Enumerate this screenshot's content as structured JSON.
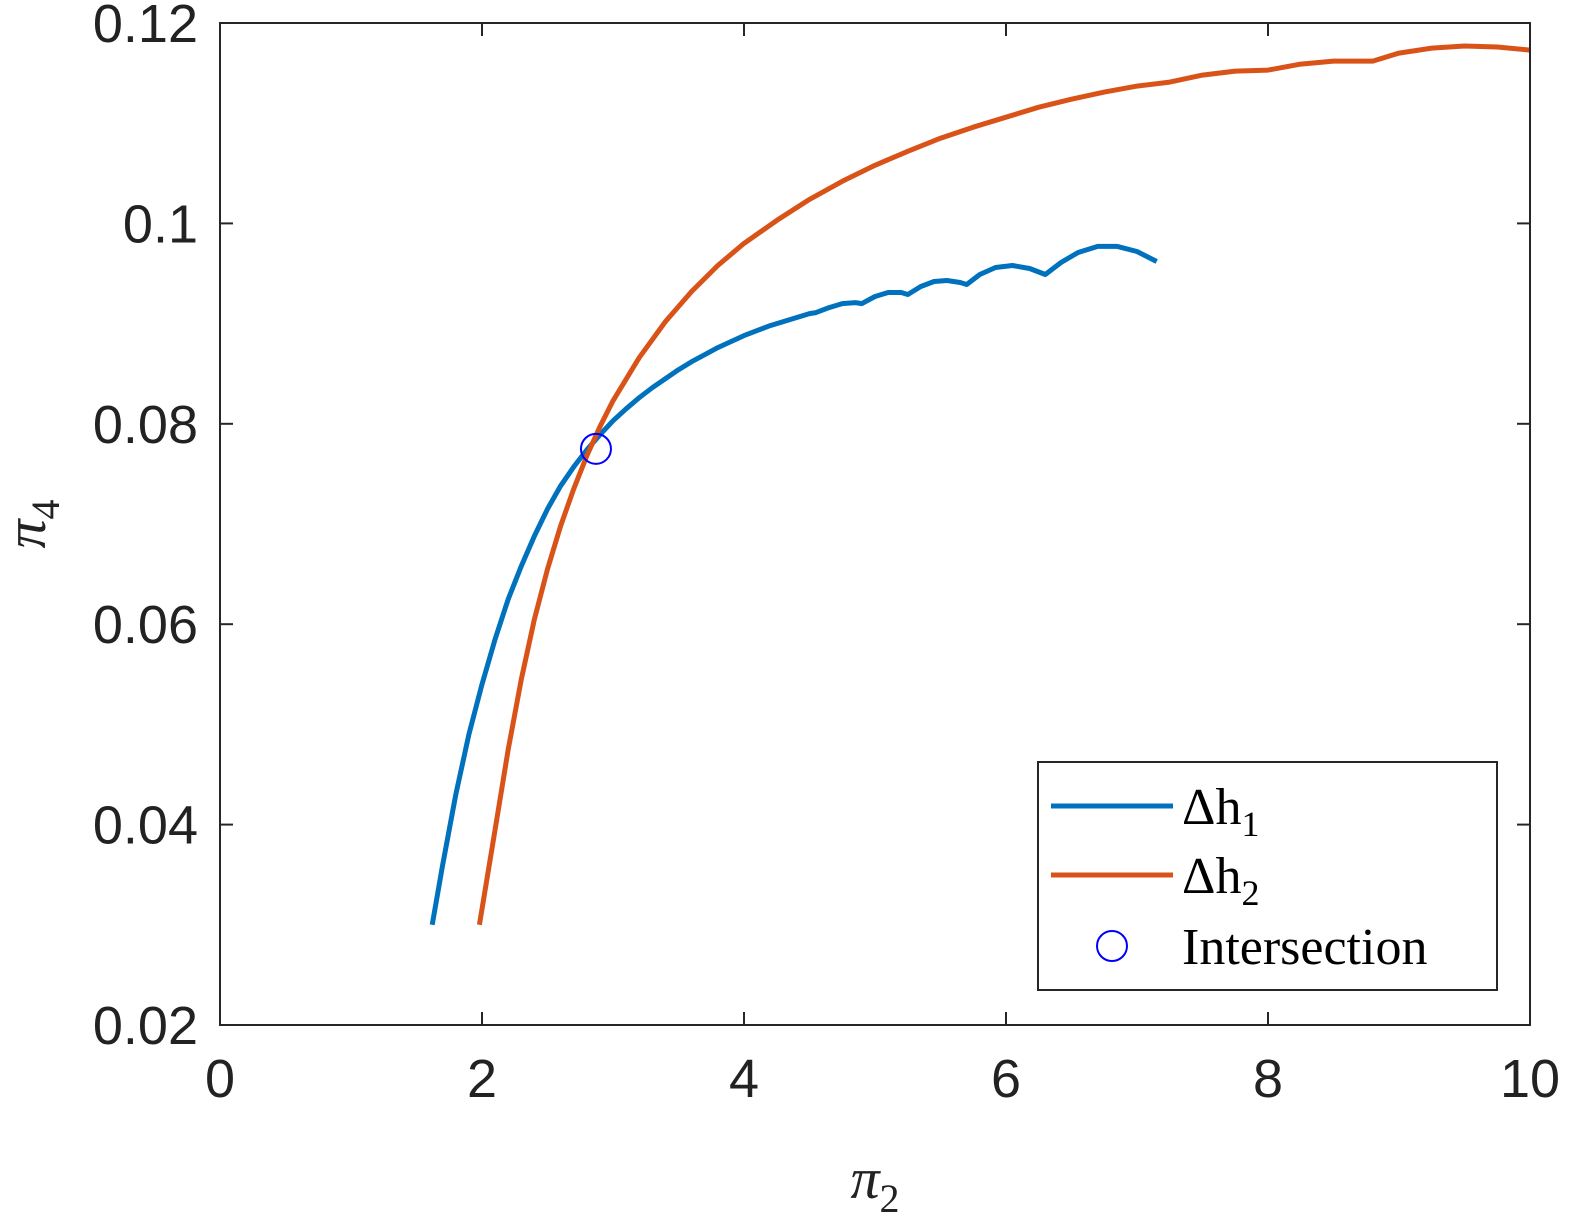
{
  "chart_data": {
    "type": "line",
    "xlabel": "π",
    "xlabel_sub": "2",
    "ylabel": "π",
    "ylabel_sub": "4",
    "xlim": [
      0,
      10
    ],
    "ylim": [
      0.02,
      0.12
    ],
    "xticks": [
      0,
      2,
      4,
      6,
      8,
      10
    ],
    "yticks": [
      0.02,
      0.04,
      0.06,
      0.08,
      0.1,
      0.12
    ],
    "xtick_labels": [
      "0",
      "2",
      "4",
      "6",
      "8",
      "10"
    ],
    "ytick_labels": [
      "0.02",
      "0.04",
      "0.06",
      "0.08",
      "0.1",
      "0.12"
    ],
    "grid": false,
    "legend_position": "bottom-right",
    "series": [
      {
        "name": "Δh",
        "name_sub": "1",
        "color": "#0072BD",
        "points": [
          [
            1.62,
            0.03
          ],
          [
            1.7,
            0.036
          ],
          [
            1.8,
            0.043
          ],
          [
            1.9,
            0.049
          ],
          [
            2.0,
            0.054
          ],
          [
            2.1,
            0.0585
          ],
          [
            2.2,
            0.0625
          ],
          [
            2.3,
            0.0658
          ],
          [
            2.4,
            0.0688
          ],
          [
            2.5,
            0.0715
          ],
          [
            2.6,
            0.0738
          ],
          [
            2.7,
            0.0757
          ],
          [
            2.8,
            0.0774
          ],
          [
            2.9,
            0.0789
          ],
          [
            3.0,
            0.0803
          ],
          [
            3.1,
            0.0815
          ],
          [
            3.2,
            0.0826
          ],
          [
            3.3,
            0.0836
          ],
          [
            3.4,
            0.0845
          ],
          [
            3.5,
            0.0854
          ],
          [
            3.6,
            0.0862
          ],
          [
            3.7,
            0.0869
          ],
          [
            3.8,
            0.0876
          ],
          [
            3.9,
            0.0882
          ],
          [
            4.0,
            0.0888
          ],
          [
            4.1,
            0.0893
          ],
          [
            4.2,
            0.0898
          ],
          [
            4.3,
            0.0902
          ],
          [
            4.4,
            0.0906
          ],
          [
            4.5,
            0.091
          ],
          [
            4.55,
            0.0911
          ],
          [
            4.65,
            0.0916
          ],
          [
            4.75,
            0.092
          ],
          [
            4.85,
            0.0921
          ],
          [
            4.9,
            0.092
          ],
          [
            5.0,
            0.0927
          ],
          [
            5.1,
            0.0931
          ],
          [
            5.2,
            0.0931
          ],
          [
            5.25,
            0.0929
          ],
          [
            5.35,
            0.0937
          ],
          [
            5.45,
            0.0942
          ],
          [
            5.55,
            0.0943
          ],
          [
            5.65,
            0.0941
          ],
          [
            5.7,
            0.0939
          ],
          [
            5.8,
            0.0949
          ],
          [
            5.92,
            0.0956
          ],
          [
            6.05,
            0.0958
          ],
          [
            6.18,
            0.0955
          ],
          [
            6.3,
            0.0949
          ],
          [
            6.42,
            0.0961
          ],
          [
            6.55,
            0.0971
          ],
          [
            6.7,
            0.0977
          ],
          [
            6.85,
            0.0977
          ],
          [
            7.0,
            0.0972
          ],
          [
            7.15,
            0.0962
          ]
        ]
      },
      {
        "name": "Δh",
        "name_sub": "2",
        "color": "#D95319",
        "points": [
          [
            1.98,
            0.03
          ],
          [
            2.1,
            0.0395
          ],
          [
            2.2,
            0.0475
          ],
          [
            2.3,
            0.0545
          ],
          [
            2.4,
            0.0605
          ],
          [
            2.5,
            0.0655
          ],
          [
            2.6,
            0.0698
          ],
          [
            2.7,
            0.0735
          ],
          [
            2.8,
            0.0768
          ],
          [
            2.9,
            0.0797
          ],
          [
            3.0,
            0.0823
          ],
          [
            3.2,
            0.0866
          ],
          [
            3.4,
            0.0902
          ],
          [
            3.6,
            0.0932
          ],
          [
            3.8,
            0.0958
          ],
          [
            4.0,
            0.098
          ],
          [
            4.25,
            0.1003
          ],
          [
            4.5,
            0.1024
          ],
          [
            4.75,
            0.1042
          ],
          [
            5.0,
            0.1058
          ],
          [
            5.25,
            0.1072
          ],
          [
            5.5,
            0.1085
          ],
          [
            5.75,
            0.1096
          ],
          [
            6.0,
            0.1106
          ],
          [
            6.25,
            0.1116
          ],
          [
            6.5,
            0.1124
          ],
          [
            6.75,
            0.1131
          ],
          [
            7.0,
            0.1137
          ],
          [
            7.25,
            0.1141
          ],
          [
            7.5,
            0.1148
          ],
          [
            7.75,
            0.1152
          ],
          [
            8.0,
            0.1153
          ],
          [
            8.25,
            0.1159
          ],
          [
            8.5,
            0.1162
          ],
          [
            8.8,
            0.1162
          ],
          [
            9.0,
            0.117
          ],
          [
            9.25,
            0.1175
          ],
          [
            9.5,
            0.1177
          ],
          [
            9.75,
            0.1176
          ],
          [
            10.0,
            0.1173
          ]
        ]
      }
    ],
    "markers": [
      {
        "name": "Intersection",
        "x": 2.87,
        "y": 0.0775,
        "color": "#0000FF",
        "shape": "circle"
      }
    ]
  }
}
